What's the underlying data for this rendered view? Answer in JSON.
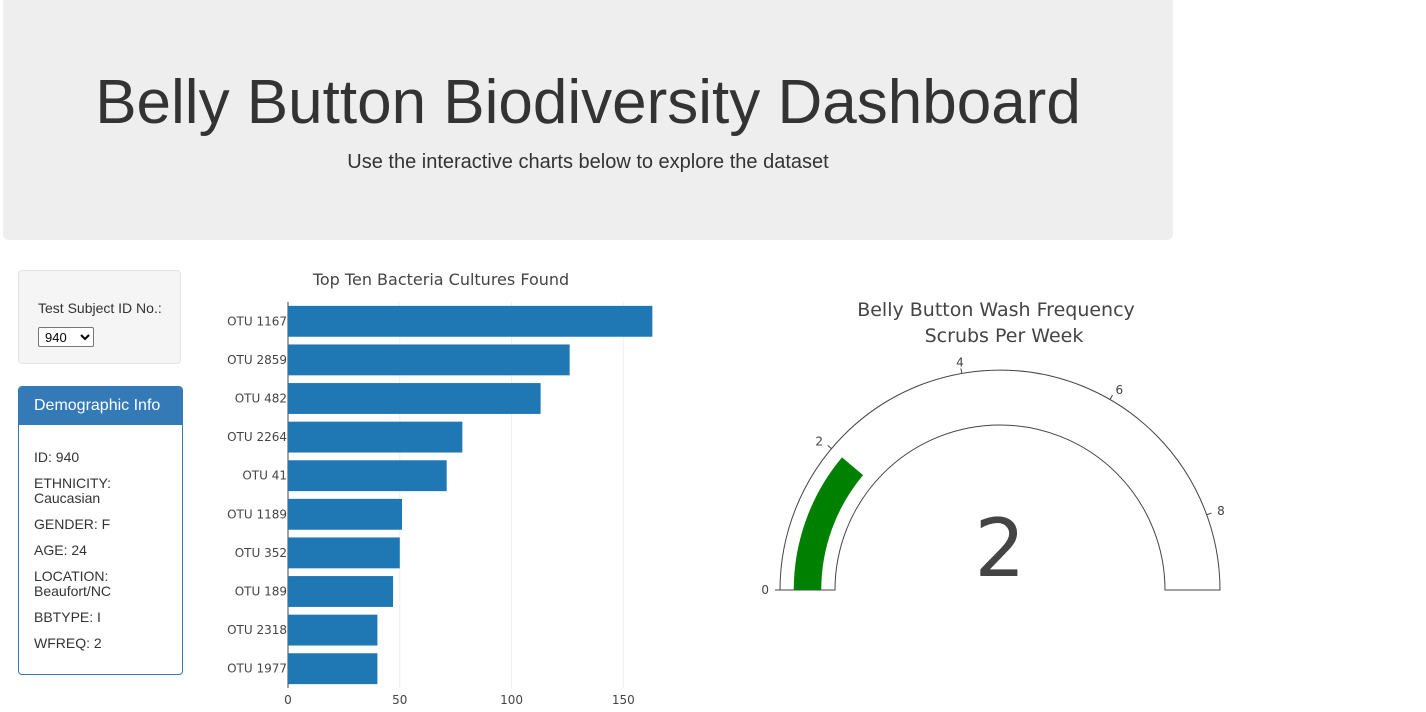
{
  "header": {
    "title": "Belly Button Biodiversity Dashboard",
    "subtitle": "Use the interactive charts below to explore the dataset"
  },
  "selector": {
    "label": "Test Subject ID No.:",
    "selected": "940"
  },
  "demographics": {
    "heading": "Demographic Info",
    "rows": [
      "ID: 940",
      "ETHNICITY: Caucasian",
      "GENDER: F",
      "AGE: 24",
      "LOCATION: Beaufort/NC",
      "BBTYPE: I",
      "WFREQ: 2"
    ]
  },
  "colors": {
    "bar": "#1f77b4",
    "gauge_bar": "#008000",
    "panel": "#337ab7"
  },
  "chart_data": [
    {
      "type": "bar",
      "orientation": "horizontal",
      "title": "Top Ten Bacteria Cultures Found",
      "categories": [
        "OTU 1167",
        "OTU 2859",
        "OTU 482",
        "OTU 2264",
        "OTU 41",
        "OTU 1189",
        "OTU 352",
        "OTU 189",
        "OTU 2318",
        "OTU 1977"
      ],
      "values": [
        163,
        126,
        113,
        78,
        71,
        51,
        50,
        47,
        40,
        40
      ],
      "xlim": [
        0,
        170
      ],
      "xticks": [
        0,
        50,
        100,
        150
      ],
      "grid": true
    },
    {
      "type": "gauge",
      "title": "Belly Button Wash Frequency",
      "subtitle": "Scrubs Per Week",
      "value": 2,
      "range": [
        0,
        9
      ],
      "ticks": [
        0,
        2,
        4,
        6,
        8
      ]
    }
  ]
}
